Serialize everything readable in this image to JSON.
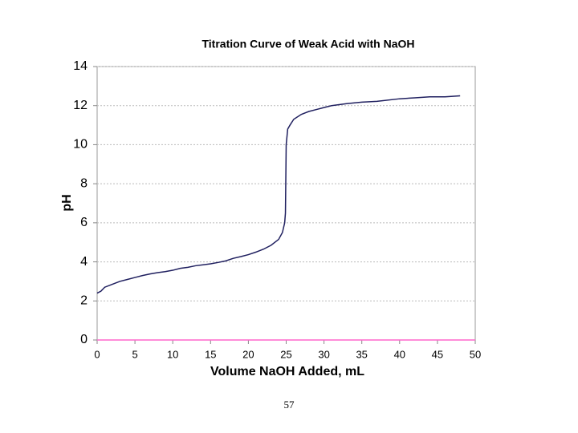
{
  "chart_data": {
    "type": "line",
    "title": "Titration Curve of Weak Acid with NaOH",
    "x_label": "Volume NaOH Added, mL",
    "y_label": "pH",
    "x": [
      0,
      0.5,
      1,
      2,
      3,
      4,
      5,
      6,
      7,
      8,
      9,
      10,
      11,
      12,
      13,
      14,
      15,
      16,
      17,
      18,
      19,
      20,
      21,
      22,
      23,
      24,
      24.5,
      24.8,
      24.9,
      25,
      25.2,
      25.5,
      26,
      27,
      28,
      29,
      30,
      31,
      32,
      33,
      35,
      37,
      40,
      42,
      44,
      46,
      48
    ],
    "series": [
      {
        "color": "#1f1f5f",
        "values": [
          2.4,
          2.5,
          2.7,
          2.85,
          3.0,
          3.1,
          3.2,
          3.3,
          3.38,
          3.45,
          3.5,
          3.57,
          3.67,
          3.72,
          3.8,
          3.85,
          3.9,
          3.97,
          4.05,
          4.18,
          4.27,
          4.37,
          4.5,
          4.65,
          4.85,
          5.15,
          5.5,
          6.0,
          6.5,
          10.0,
          10.8,
          11.0,
          11.3,
          11.55,
          11.7,
          11.8,
          11.9,
          12.0,
          12.05,
          12.1,
          12.18,
          12.22,
          12.35,
          12.4,
          12.45,
          12.45,
          12.5
        ]
      }
    ],
    "xlim": [
      0,
      50
    ],
    "xticks": [
      0,
      5,
      10,
      15,
      20,
      25,
      30,
      35,
      40,
      45,
      50
    ],
    "ylim": [
      0,
      14
    ],
    "yticks": [
      0,
      2,
      4,
      6,
      8,
      10,
      12,
      14
    ],
    "grid": true,
    "x_axis_color": "#ff66cc"
  },
  "slide": {
    "page_number": "57"
  }
}
